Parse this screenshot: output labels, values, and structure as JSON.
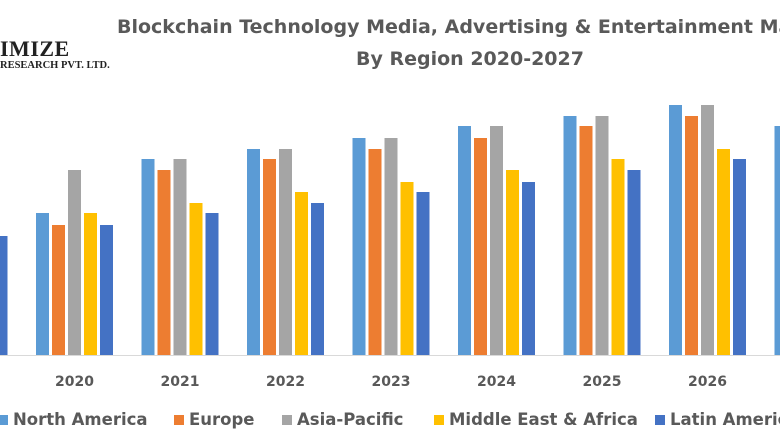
{
  "logo": {
    "line1": "IMIZE",
    "line2": "RESEARCH PVT. LTD."
  },
  "chart_data": {
    "type": "bar",
    "title": "Blockchain Technology Media, Advertising & Entertainment Mark",
    "subtitle": "By Region 2020-2027",
    "categories": [
      "2020",
      "2021",
      "2022",
      "2023",
      "2024",
      "2025",
      "2026"
    ],
    "series": [
      {
        "name": "North America",
        "color": "#5B9BD5",
        "values": [
          142,
          196,
          206,
          217,
          229,
          239,
          250
        ]
      },
      {
        "name": "Europe",
        "color": "#ED7D31",
        "values": [
          130,
          185,
          196,
          206,
          217,
          229,
          239
        ]
      },
      {
        "name": "Asia-Pacific",
        "color": "#A5A5A5",
        "values": [
          185,
          196,
          206,
          217,
          229,
          239,
          250
        ]
      },
      {
        "name": "Middle East & Africa",
        "color": "#FFC000",
        "values": [
          142,
          152,
          163,
          173,
          185,
          196,
          206
        ]
      },
      {
        "name": "Latin America",
        "color": "#4472C4",
        "values": [
          130,
          142,
          152,
          163,
          173,
          185,
          196
        ]
      }
    ],
    "clipped_left_latin_america": 119,
    "clipped_right_north_america": 229,
    "ylim": [
      0,
      250
    ],
    "y_axis_shown": false,
    "grid": false,
    "legend": "bottom"
  }
}
